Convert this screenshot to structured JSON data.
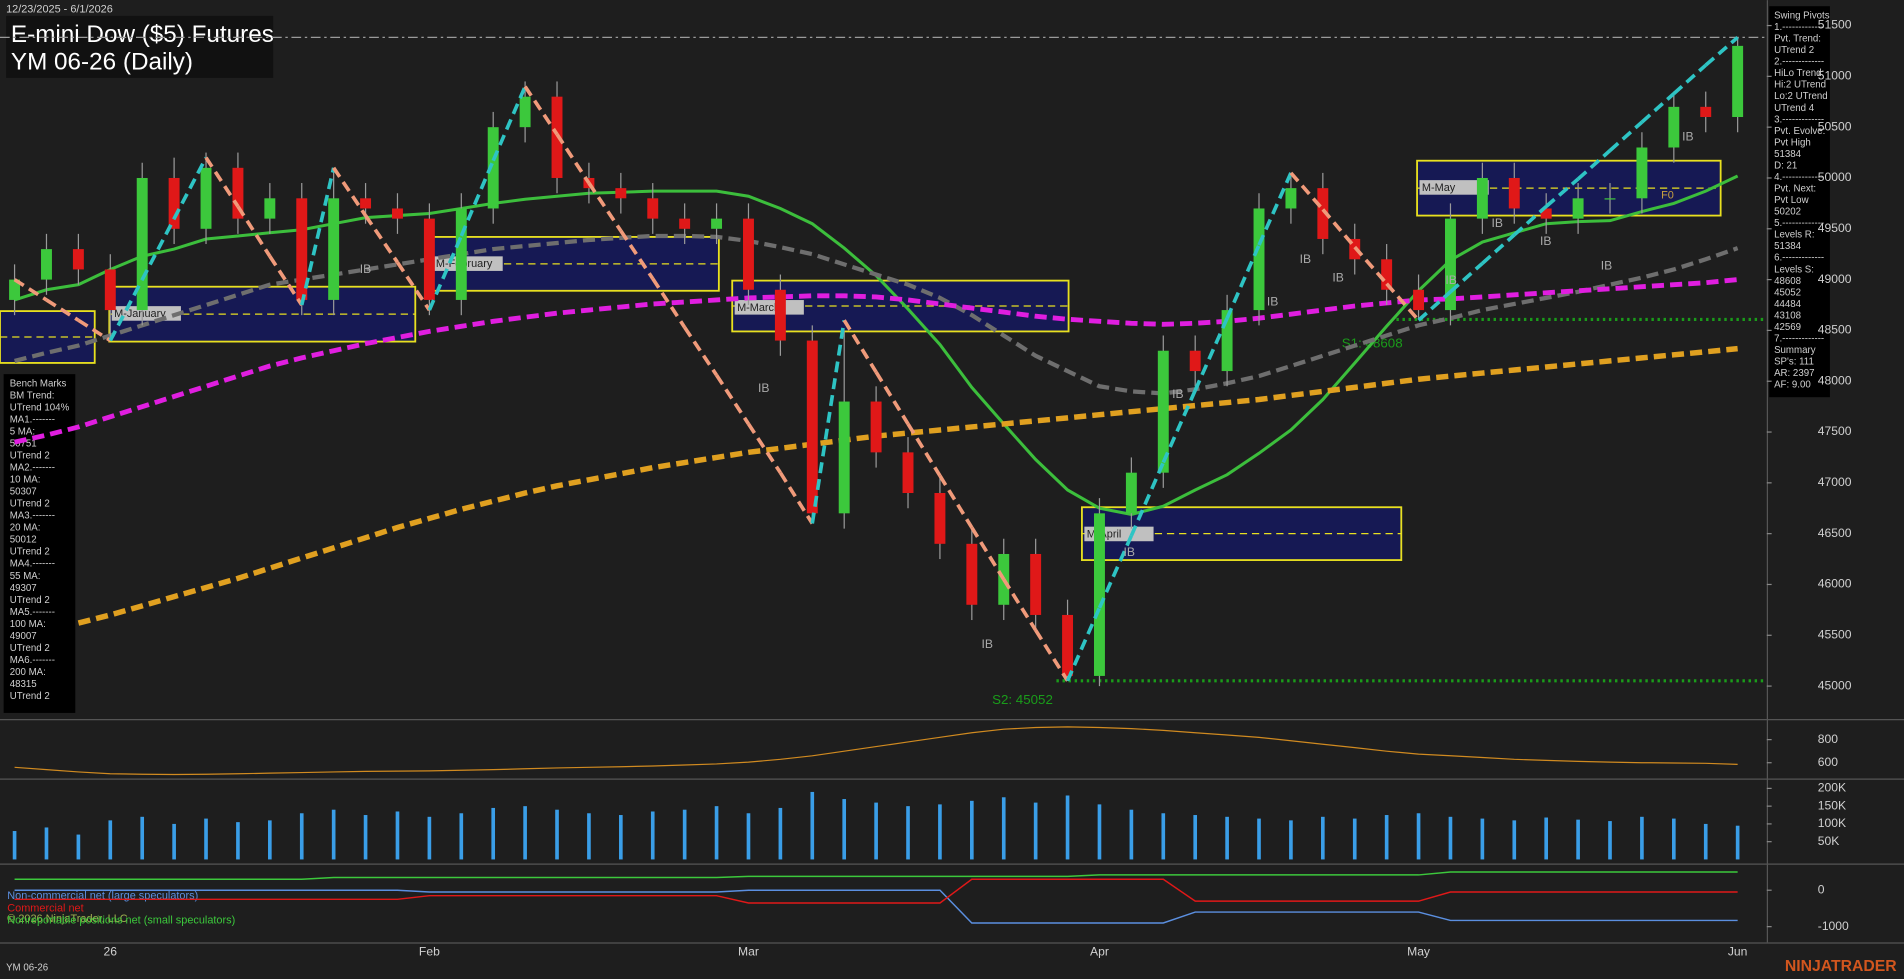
{
  "header": {
    "date_range": "12/23/2025 - 6/1/2026",
    "title": "E-mini Dow ($5) Futures",
    "subtitle": "YM 06-26 (Daily)",
    "footer": "YM 06-26",
    "brand": "NINJATRADER",
    "copyright": "© 2026 NinjaTrader, LLC"
  },
  "swing_pivots": [
    "Swing Pivots",
    "1.-------------",
    "Pvt. Trend:",
    "UTrend 2",
    "2.-------------",
    "HiLo Trend:",
    "Hi:2 UTrend",
    "Lo:2 UTrend",
    "UTrend 4",
    "3.-------------",
    "Pvt. Evolve:",
    "Pvt High",
    "51384",
    "D: 21",
    "4.-------------",
    "Pvt. Next:",
    "Pvt Low",
    "50202",
    "5.-------------",
    "Levels R:",
    "51384",
    "6.-------------",
    "Levels S:",
    "48608",
    "45052",
    "44484",
    "43108",
    "42569",
    "7.-------------",
    "Summary",
    "SP's: 111",
    "AR: 2397",
    "AF: 9.00"
  ],
  "bench_marks": [
    "Bench Marks",
    "BM Trend:",
    "UTrend 104%",
    "MA1.-------",
    "5 MA:",
    "50751",
    "UTrend 2",
    "MA2.-------",
    "10 MA:",
    "50307",
    "UTrend 2",
    "MA3.-------",
    "20 MA:",
    "50012",
    "UTrend 2",
    "MA4.-------",
    "55 MA:",
    "49307",
    "UTrend 2",
    "MA5.-------",
    "100 MA:",
    "49007",
    "UTrend 2",
    "MA6.-------",
    "200 MA:",
    "48315",
    "UTrend 2"
  ],
  "chart_data": [
    {
      "type": "candlestick",
      "categories": [
        null,
        null,
        null,
        "26",
        null,
        null,
        null,
        null,
        null,
        null,
        null,
        null,
        null,
        "Feb",
        null,
        null,
        null,
        null,
        null,
        null,
        null,
        null,
        null,
        "Mar",
        null,
        null,
        null,
        null,
        null,
        null,
        null,
        null,
        null,
        null,
        "Apr",
        null,
        null,
        null,
        null,
        null,
        null,
        null,
        null,
        null,
        "May",
        null,
        null,
        null,
        null,
        null,
        null,
        null,
        null,
        null,
        "Jun"
      ],
      "open": [
        48800,
        49000,
        49300,
        49100,
        48700,
        50000,
        49500,
        50100,
        49600,
        49800,
        48800,
        49800,
        49700,
        49600,
        48800,
        49700,
        50500,
        50800,
        50000,
        49900,
        49800,
        49600,
        49500,
        49600,
        48900,
        48400,
        46700,
        47800,
        47300,
        46900,
        46400,
        45800,
        46300,
        45700,
        45100,
        46700,
        47100,
        48300,
        48100,
        48700,
        49700,
        49900,
        49400,
        49200,
        48900,
        48700,
        49600,
        50000,
        49700,
        49600,
        49800,
        49800,
        50300,
        50700,
        50600
      ],
      "high": [
        49150,
        49450,
        49450,
        49250,
        50150,
        50200,
        50250,
        50250,
        49950,
        49950,
        50100,
        49950,
        49850,
        49750,
        49850,
        50650,
        50950,
        50950,
        50150,
        50050,
        49950,
        49750,
        49750,
        49750,
        49050,
        48550,
        48500,
        47950,
        47450,
        47050,
        46550,
        46450,
        46450,
        45850,
        46850,
        47250,
        48450,
        48450,
        48850,
        49850,
        50050,
        50050,
        49550,
        49350,
        49050,
        49750,
        50150,
        50150,
        49850,
        49950,
        49950,
        50450,
        50850,
        50850,
        51384
      ],
      "low": [
        48650,
        48850,
        48950,
        48400,
        48550,
        49350,
        49350,
        49450,
        49450,
        48650,
        48650,
        49550,
        49450,
        48650,
        48650,
        49550,
        50350,
        49850,
        49750,
        49650,
        49450,
        49350,
        49350,
        48750,
        48250,
        46600,
        46550,
        47150,
        46750,
        46250,
        45650,
        45650,
        45550,
        45052,
        45000,
        46550,
        46950,
        47950,
        47950,
        48550,
        49550,
        49250,
        49050,
        48750,
        48608,
        48550,
        49450,
        49550,
        49450,
        49450,
        49650,
        49650,
        50150,
        50450,
        50450
      ],
      "close": [
        49000,
        49300,
        49100,
        48700,
        50000,
        49500,
        50100,
        49600,
        49800,
        48800,
        49800,
        49700,
        49600,
        48800,
        49700,
        50500,
        50800,
        50000,
        49900,
        49800,
        49600,
        49500,
        49600,
        48900,
        48400,
        46700,
        47800,
        47300,
        46900,
        46400,
        45800,
        46300,
        45700,
        45100,
        46700,
        47100,
        48300,
        48100,
        48700,
        49700,
        49900,
        49400,
        49200,
        48900,
        48700,
        49600,
        50000,
        49700,
        49600,
        49800,
        49800,
        50300,
        50700,
        50600,
        51300
      ],
      "up_color": "#3cc83c",
      "down_color": "#e01818",
      "wick_color": "#9a9a9a",
      "series": [
        {
          "color": "#3cbe3c",
          "dashed": false,
          "width": 2.5,
          "values": [
            48800,
            48900,
            48950,
            49100,
            49230,
            49300,
            49400,
            49430,
            49460,
            49490,
            49550,
            49610,
            49630,
            49650,
            49700,
            49750,
            49790,
            49820,
            49850,
            49860,
            49870,
            49870,
            49870,
            49820,
            49700,
            49550,
            49310,
            49040,
            48710,
            48360,
            47940,
            47580,
            47230,
            46930,
            46750,
            46690,
            46770,
            46930,
            47080,
            47290,
            47520,
            47820,
            48180,
            48540,
            48890,
            49190,
            49370,
            49460,
            49550,
            49570,
            49580,
            49670,
            49750,
            49870,
            50020
          ]
        },
        {
          "color": "#6e6e6e",
          "dashed": true,
          "width": 3.5,
          "values": [
            48200,
            48280,
            48350,
            48450,
            48550,
            48650,
            48750,
            48850,
            48950,
            49000,
            49050,
            49100,
            49150,
            49200,
            49250,
            49300,
            49330,
            49360,
            49390,
            49410,
            49430,
            49430,
            49420,
            49380,
            49320,
            49250,
            49150,
            49050,
            48950,
            48820,
            48650,
            48450,
            48250,
            48100,
            47950,
            47900,
            47880,
            47920,
            47980,
            48050,
            48150,
            48250,
            48350,
            48450,
            48550,
            48620,
            48700,
            48760,
            48820,
            48880,
            48950,
            49020,
            49100,
            49200,
            49310
          ]
        },
        {
          "color": "#e01ee0",
          "dashed": true,
          "width": 4,
          "values": [
            47400,
            47470,
            47550,
            47650,
            47750,
            47850,
            47950,
            48050,
            48150,
            48230,
            48300,
            48370,
            48430,
            48490,
            48540,
            48590,
            48630,
            48670,
            48700,
            48730,
            48760,
            48780,
            48800,
            48820,
            48830,
            48840,
            48840,
            48830,
            48800,
            48760,
            48720,
            48680,
            48640,
            48610,
            48590,
            48570,
            48560,
            48570,
            48590,
            48620,
            48660,
            48700,
            48740,
            48770,
            48800,
            48810,
            48830,
            48850,
            48870,
            48890,
            48910,
            48930,
            48950,
            48970,
            49000
          ]
        },
        {
          "color": "#e0a020",
          "dashed": true,
          "width": 4.5,
          "values": [
            null,
            null,
            45620,
            45700,
            45790,
            45880,
            45970,
            46060,
            46160,
            46260,
            46360,
            46460,
            46560,
            46650,
            46740,
            46820,
            46900,
            46970,
            47030,
            47090,
            47150,
            47200,
            47250,
            47300,
            47340,
            47380,
            47420,
            47460,
            47490,
            47520,
            47550,
            47580,
            47610,
            47640,
            47670,
            47700,
            47730,
            47760,
            47790,
            47820,
            47860,
            47900,
            47940,
            47980,
            48020,
            48050,
            48080,
            48110,
            48140,
            48170,
            48200,
            48230,
            48260,
            48290,
            48320
          ]
        }
      ],
      "zigzag": {
        "up_color": "#2ec4c4",
        "down_color": "#f09a7a",
        "values": [
          49000,
          48800,
          48600,
          48400,
          49000,
          49600,
          50200,
          49720,
          49230,
          48750,
          50100,
          49630,
          49170,
          48700,
          49430,
          50170,
          50900,
          50430,
          49950,
          49480,
          49010,
          48530,
          48060,
          47580,
          47100,
          46600,
          48600,
          48090,
          47580,
          47070,
          46560,
          46050,
          45550,
          45052,
          45770,
          46480,
          47200,
          47910,
          48620,
          49340,
          50050,
          49690,
          49320,
          48960,
          48600,
          48880,
          49160,
          49440,
          49720,
          49990,
          50270,
          50550,
          50830,
          51110,
          51384
        ]
      },
      "month_boxes": [
        {
          "high": 48690,
          "low": 48180
        },
        {
          "label": "M-January",
          "high": 48930,
          "low": 48390
        },
        {
          "label": "M-February",
          "high": 49420,
          "low": 48890
        },
        {
          "label": "M-March",
          "high": 48990,
          "low": 48490
        },
        {
          "label": "M-April",
          "high": 46760,
          "low": 46240
        },
        {
          "label": "M-May",
          "high": 50170,
          "low": 49630
        }
      ],
      "reference_lines": [
        {
          "value": 51384,
          "color": "#9a9a9a"
        },
        {
          "value": 48608,
          "color": "#1a9c1a",
          "label": "S1: 48608"
        },
        {
          "value": 45052,
          "color": "#1a9c1a",
          "label": "S2: 45052"
        }
      ],
      "inside_bar_label": "IB",
      "annotation": "F0",
      "ylim": [
        44700,
        51750
      ],
      "yticks": [
        45000,
        45500,
        46000,
        46500,
        47000,
        47500,
        48000,
        48500,
        49000,
        49500,
        50000,
        50500,
        51000,
        51500
      ]
    },
    {
      "type": "line",
      "color": "#d08a20",
      "values": [
        560,
        540,
        520,
        505,
        500,
        498,
        500,
        505,
        510,
        515,
        520,
        525,
        528,
        530,
        535,
        540,
        548,
        555,
        560,
        565,
        572,
        580,
        590,
        605,
        630,
        660,
        700,
        740,
        780,
        820,
        860,
        890,
        905,
        910,
        905,
        895,
        880,
        860,
        840,
        820,
        790,
        760,
        730,
        700,
        675,
        660,
        645,
        630,
        620,
        612,
        605,
        600,
        598,
        595,
        585
      ],
      "ylim": [
        474,
        947
      ],
      "yticks": [
        600,
        800
      ]
    },
    {
      "type": "bar",
      "color": "#3a9ee8",
      "values": [
        80000,
        90000,
        70000,
        110000,
        120000,
        100000,
        115000,
        105000,
        110000,
        130000,
        140000,
        125000,
        135000,
        120000,
        130000,
        145000,
        150000,
        140000,
        130000,
        125000,
        135000,
        140000,
        150000,
        130000,
        145000,
        190000,
        170000,
        160000,
        150000,
        155000,
        165000,
        175000,
        160000,
        180000,
        155000,
        140000,
        130000,
        125000,
        120000,
        115000,
        110000,
        120000,
        115000,
        125000,
        130000,
        120000,
        115000,
        110000,
        118000,
        112000,
        108000,
        120000,
        115000,
        100000,
        95000
      ],
      "ylim": [
        -8000,
        221000
      ],
      "yticks": [
        {
          "value": 50000,
          "label": "50K"
        },
        {
          "value": 100000,
          "label": "100K"
        },
        {
          "value": 150000,
          "label": "150K"
        },
        {
          "value": 200000,
          "label": "200K"
        }
      ]
    },
    {
      "type": "line",
      "series": [
        {
          "name": "Non-commercial net (large speculators)",
          "color": "#5b8fe0",
          "values": [
            0,
            0,
            0,
            0,
            0,
            0,
            0,
            0,
            0,
            0,
            0,
            0,
            0,
            -50,
            -50,
            -50,
            -50,
            -50,
            -50,
            -50,
            -50,
            -50,
            -50,
            0,
            0,
            0,
            0,
            0,
            0,
            0,
            -900,
            -900,
            -900,
            -900,
            -900,
            -900,
            -900,
            -600,
            -600,
            -600,
            -600,
            -600,
            -600,
            -600,
            -600,
            -830,
            -830,
            -830,
            -830,
            -830,
            -830,
            -830,
            -830,
            -830,
            -830
          ]
        },
        {
          "name": "Commercial net",
          "color": "#e01818",
          "values": [
            -250,
            -250,
            -250,
            -250,
            -250,
            -250,
            -250,
            -250,
            -250,
            -250,
            -250,
            -250,
            -250,
            -150,
            -150,
            -150,
            -150,
            -150,
            -150,
            -150,
            -150,
            -150,
            -150,
            -350,
            -350,
            -350,
            -350,
            -350,
            -350,
            -350,
            300,
            300,
            300,
            300,
            300,
            300,
            300,
            -300,
            -300,
            -300,
            -300,
            -300,
            -300,
            -300,
            -300,
            -50,
            -50,
            -50,
            -50,
            -50,
            -50,
            -50,
            -50,
            -50,
            -50
          ]
        },
        {
          "name": "Nonreportable positions net (small speculators)",
          "color": "#3cc83c",
          "values": [
            300,
            300,
            300,
            300,
            300,
            300,
            300,
            300,
            300,
            300,
            350,
            350,
            350,
            350,
            350,
            350,
            350,
            350,
            350,
            350,
            350,
            350,
            350,
            380,
            380,
            380,
            380,
            380,
            380,
            380,
            380,
            380,
            380,
            380,
            420,
            420,
            420,
            420,
            420,
            420,
            420,
            420,
            420,
            420,
            420,
            500,
            500,
            500,
            500,
            500,
            500,
            500,
            500,
            500,
            500
          ]
        }
      ],
      "ylim": [
        -1400,
        700
      ],
      "yticks": [
        -1000,
        0
      ]
    }
  ]
}
